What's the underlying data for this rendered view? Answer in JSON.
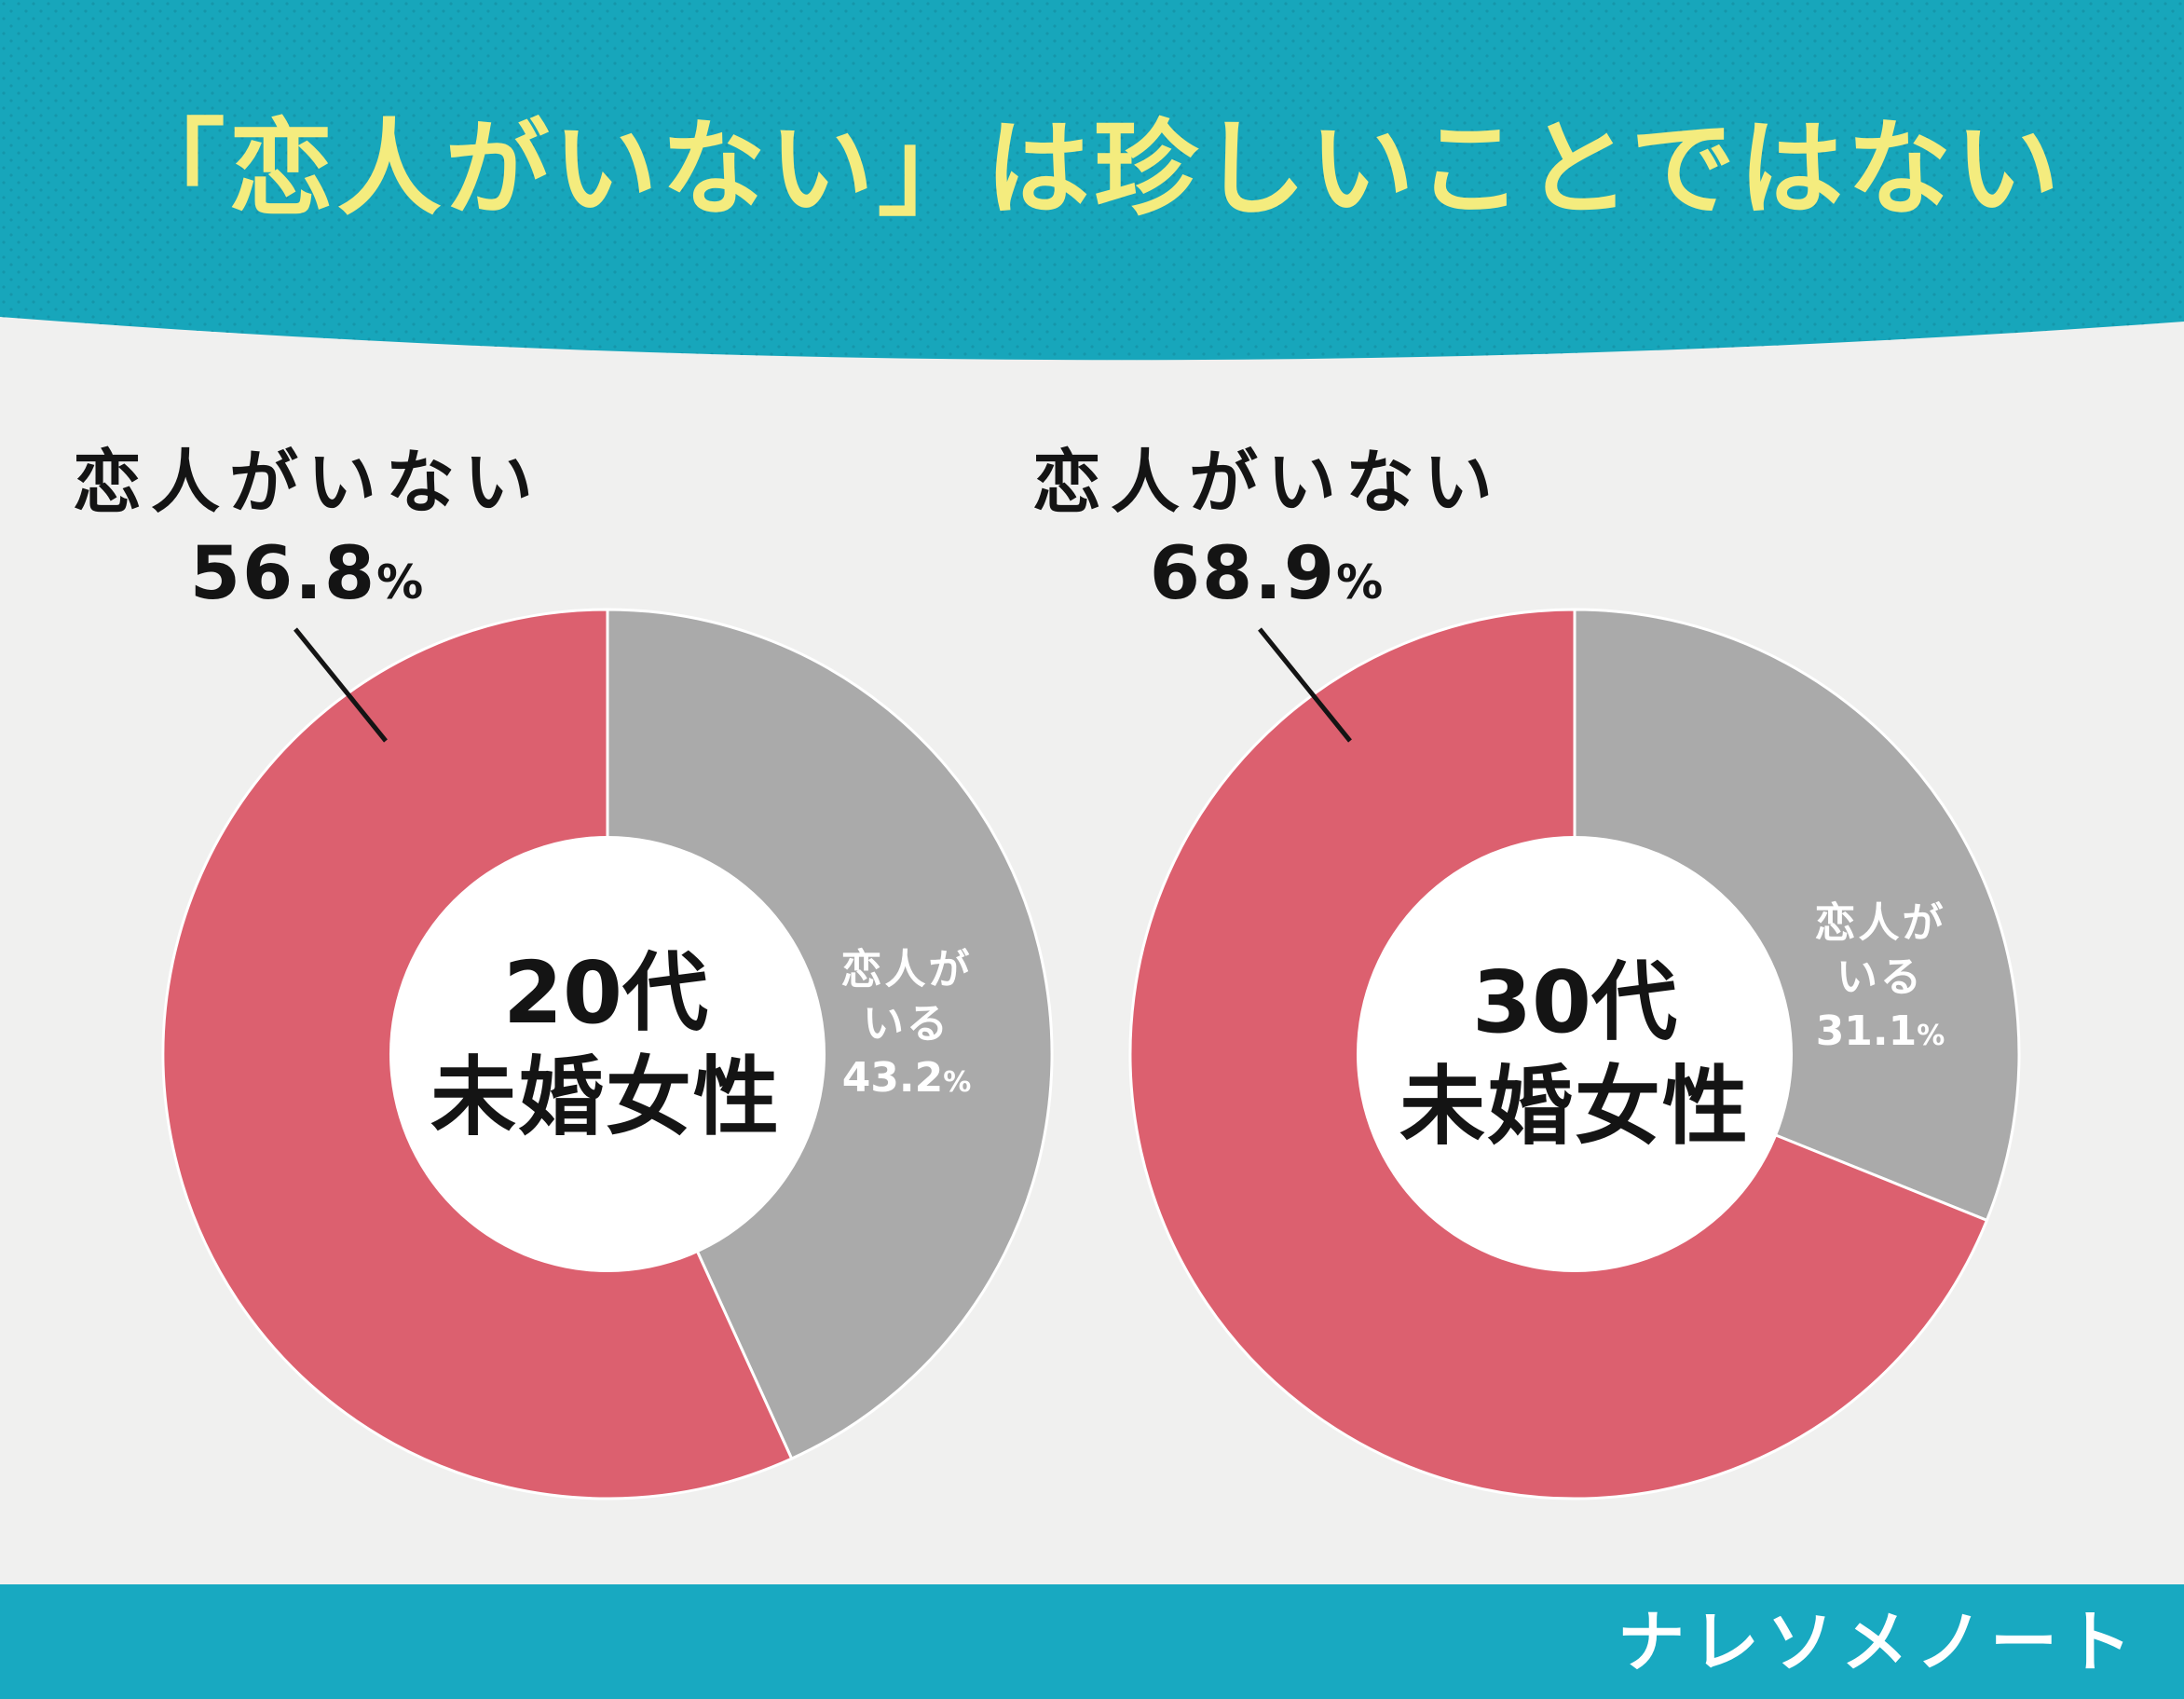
{
  "header": {
    "title": "「恋人がいない」は珍しいことではない",
    "background": "#17a6bb",
    "title_color": "#f4ec7e"
  },
  "colors": {
    "no_partner": "#dc606f",
    "has_partner": "#aaaaaa",
    "center": "#ffffff",
    "background": "#f0f0ef"
  },
  "chart_data": [
    {
      "type": "pie",
      "donut": true,
      "center_label": [
        "20代",
        "未婚女性"
      ],
      "slices": [
        {
          "label": "恋人がいない",
          "value": 56.8,
          "color": "#dc606f"
        },
        {
          "label": "恋人がいる",
          "value": 43.2,
          "color": "#aaaaaa"
        }
      ]
    },
    {
      "type": "pie",
      "donut": true,
      "center_label": [
        "30代",
        "未婚女性"
      ],
      "slices": [
        {
          "label": "恋人がいない",
          "value": 68.9,
          "color": "#dc606f"
        },
        {
          "label": "恋人がいる",
          "value": 31.1,
          "color": "#aaaaaa"
        }
      ]
    }
  ],
  "charts": [
    {
      "callout_label": "恋人がいない",
      "callout_value": "56.8",
      "center_age": "20代",
      "center_group": "未婚女性",
      "slice_line1": "恋人が",
      "slice_line2": "いる",
      "slice_value": "43.2"
    },
    {
      "callout_label": "恋人がいない",
      "callout_value": "68.9",
      "center_age": "30代",
      "center_group": "未婚女性",
      "slice_line1": "恋人が",
      "slice_line2": "いる",
      "slice_value": "31.1"
    }
  ],
  "unit": "%",
  "footer": {
    "brand": "ナレソメノート",
    "background": "#18a9c1"
  }
}
